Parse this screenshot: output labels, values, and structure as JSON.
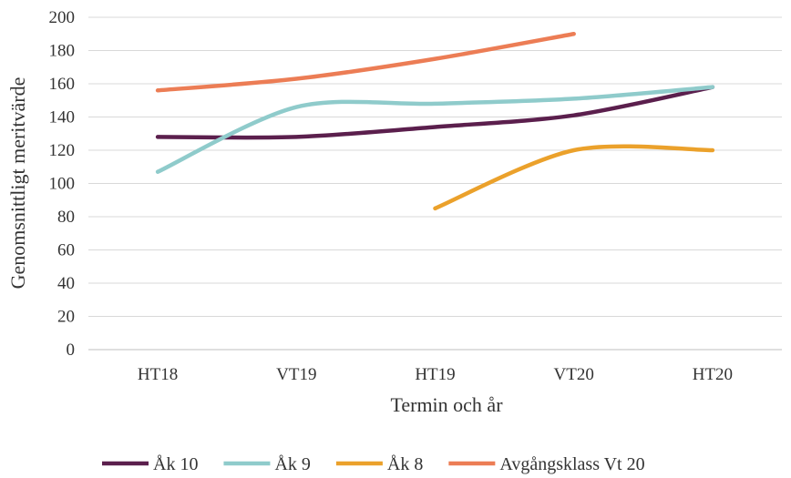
{
  "chart_data": {
    "type": "line",
    "categories": [
      "HT18",
      "VT19",
      "HT19",
      "VT20",
      "HT20"
    ],
    "xlabel": "Termin och år",
    "ylabel": "Genomsnittligt meritvärde",
    "ylim": [
      0,
      200
    ],
    "yticks": [
      0,
      20,
      40,
      60,
      80,
      100,
      120,
      140,
      160,
      180,
      200
    ],
    "grid": true,
    "legend": "bottom",
    "series": [
      {
        "name": "Åk 10",
        "color": "#5b1f4d",
        "values": [
          128,
          128,
          134,
          141,
          158
        ]
      },
      {
        "name": "Åk 9",
        "color": "#8fcbcb",
        "values": [
          107,
          146,
          148,
          151,
          158
        ]
      },
      {
        "name": "Åk 8",
        "color": "#eba12b",
        "values": [
          null,
          null,
          85,
          120,
          120
        ]
      },
      {
        "name": "Avgångsklass Vt 20",
        "color": "#ec7d55",
        "values": [
          156,
          163,
          175,
          190,
          null
        ]
      }
    ]
  }
}
